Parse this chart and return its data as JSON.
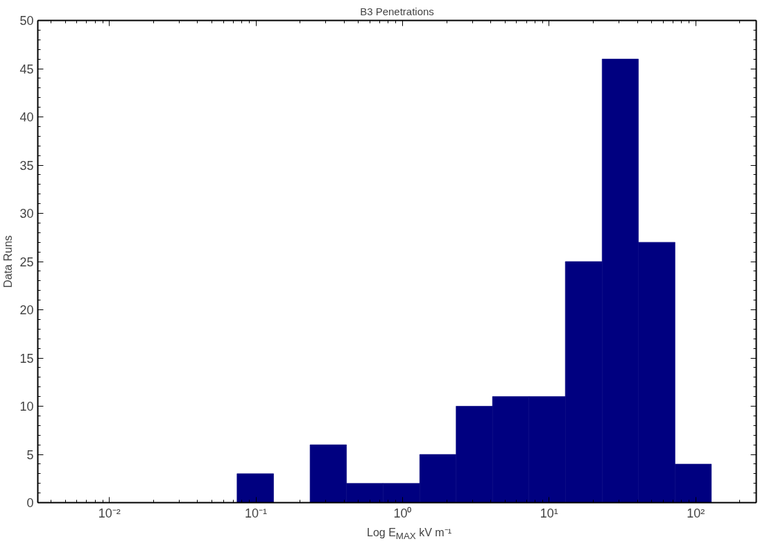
{
  "chart_data": {
    "type": "histogram",
    "title": "B3 Penetrations",
    "xlabel": "Log E$_{MAX}$ kV m⁻¹",
    "ylabel": "Data Runs",
    "bins": [
      0.0743,
      0.132,
      0.234,
      0.415,
      0.736,
      1.31,
      2.32,
      4.11,
      7.29,
      12.9,
      23.0,
      40.7,
      72.3,
      128
    ],
    "values": [
      3,
      0,
      6,
      2,
      2,
      5,
      10,
      11,
      11,
      25,
      46,
      27,
      4
    ],
    "color": "#000080",
    "log": "x",
    "xlim": [
      0.00325,
      259
    ],
    "xticks": [
      {
        "value": 0.01,
        "label": "10⁻²"
      },
      {
        "value": 0.1,
        "label": "10⁻¹"
      },
      {
        "value": 1,
        "label": "10⁰"
      },
      {
        "value": 10,
        "label": "10¹"
      },
      {
        "value": 100,
        "label": "10²"
      }
    ],
    "ylim": [
      0,
      50
    ],
    "yticks": [
      0,
      5,
      10,
      15,
      20,
      25,
      30,
      35,
      40,
      45,
      50
    ],
    "grid": false
  }
}
